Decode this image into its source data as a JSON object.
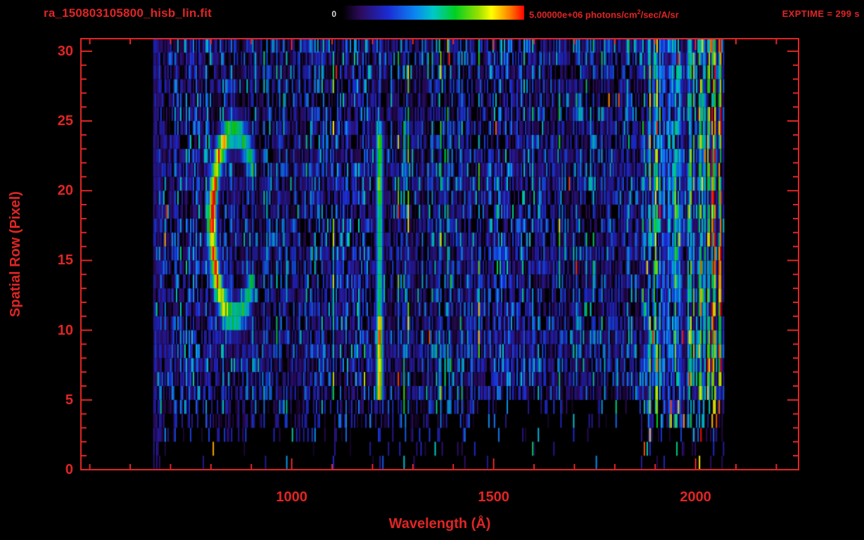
{
  "accent_color": "#e02525",
  "background_color": "#000000",
  "header": {
    "title": "ra_150803105800_hisb_lin.fit",
    "exptime": "EXPTIME = 299 s",
    "colorbar": {
      "min_label": "0",
      "max_value": "5.00000e+06",
      "units_prefix": " photons/cm",
      "units_sup": "2",
      "units_suffix": "/sec/A/sr"
    }
  },
  "chart_data": {
    "type": "heatmap",
    "title": "ra_150803105800_hisb_lin.fit",
    "xlabel": "Wavelength (Å)",
    "ylabel": "Spatial Row (Pixel)",
    "xlim": [
      478,
      2255
    ],
    "ylim": [
      0,
      30.9
    ],
    "x_major_ticks": [
      1000,
      1500,
      2000
    ],
    "x_minor_step": 100,
    "y_major_ticks": [
      0,
      5,
      10,
      15,
      20,
      25,
      30
    ],
    "y_minor_step": 1,
    "colorbar_range_photons": [
      0,
      5000000
    ],
    "colorbar_units": "photons/cm^2/sec/A/sr",
    "exposure_time_s": 299,
    "colormap_stops": [
      [
        0,
        "#000000"
      ],
      [
        0.1,
        "#2d0b5e"
      ],
      [
        0.25,
        "#1b2bd4"
      ],
      [
        0.4,
        "#0b86f0"
      ],
      [
        0.5,
        "#00c8c8"
      ],
      [
        0.62,
        "#00d020"
      ],
      [
        0.75,
        "#9ae000"
      ],
      [
        0.82,
        "#ffff00"
      ],
      [
        0.92,
        "#ff8000"
      ],
      [
        1,
        "#ff0000"
      ]
    ],
    "data_extent": {
      "wavelength": [
        657,
        2071
      ],
      "rows": [
        0,
        31
      ]
    },
    "row_activity": [
      0.05,
      0.08,
      0.2,
      0.45,
      0.55,
      0.8,
      0.85,
      0.9,
      1.0,
      1.0,
      0.85,
      0.85,
      0.8,
      0.85,
      0.95,
      0.95,
      0.9,
      0.85,
      0.85,
      0.9,
      1.0,
      1.0,
      0.95,
      0.85,
      0.85,
      0.8,
      0.8,
      0.85,
      0.85,
      0.9,
      0.85
    ],
    "features": [
      {
        "name": "c-shaped-emission-arc",
        "center_wavelength": 857,
        "center_row": 17.6,
        "semi_axis_wavelength": 55,
        "semi_axis_rows": 6.6,
        "thickness": 0.2,
        "opening_half_angle_deg": 34,
        "peak_value": 1.0
      },
      {
        "name": "lyman-alpha-emission-line",
        "wavelength": 1216,
        "sigma_wavelength": 6,
        "row_range": [
          5,
          24
        ],
        "peak_value": 0.97
      },
      {
        "name": "long-wavelength-airglow-band",
        "wavelength_range": [
          1862,
          2071
        ],
        "edge_boost_start": 1990,
        "typical_value": 0.6
      },
      {
        "name": "background-noise",
        "typical_value_range": [
          0.03,
          0.3
        ]
      }
    ],
    "seed": 1337
  }
}
